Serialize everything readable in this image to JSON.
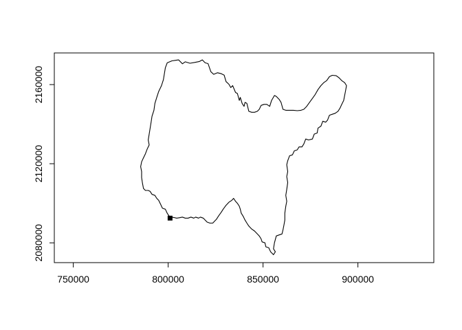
{
  "chart_data": {
    "type": "map",
    "xlim": [
      740000,
      940000
    ],
    "ylim": [
      2070000,
      2176000
    ],
    "x_ticks": [
      {
        "value": 750000,
        "label": "750000"
      },
      {
        "value": 800000,
        "label": "800000"
      },
      {
        "value": 850000,
        "label": "850000"
      },
      {
        "value": 900000,
        "label": "900000"
      }
    ],
    "y_ticks": [
      {
        "value": 2080000,
        "label": "2080000"
      },
      {
        "value": 2120000,
        "label": "2120000"
      },
      {
        "value": 2160000,
        "label": "2160000"
      }
    ],
    "point": {
      "x": 801000,
      "y": 2092500,
      "shape": "square",
      "color": "#000000"
    },
    "boundary": [
      [
        799500,
        2171000
      ],
      [
        802000,
        2172000
      ],
      [
        805500,
        2172500
      ],
      [
        807500,
        2170500
      ],
      [
        809000,
        2171500
      ],
      [
        811500,
        2170800
      ],
      [
        814000,
        2171200
      ],
      [
        816500,
        2171700
      ],
      [
        818000,
        2172500
      ],
      [
        819500,
        2171000
      ],
      [
        821000,
        2170600
      ],
      [
        822500,
        2166500
      ],
      [
        824000,
        2165200
      ],
      [
        826000,
        2166000
      ],
      [
        828000,
        2165500
      ],
      [
        829500,
        2164800
      ],
      [
        830500,
        2161500
      ],
      [
        832000,
        2160200
      ],
      [
        833000,
        2158500
      ],
      [
        834000,
        2159500
      ],
      [
        835500,
        2156000
      ],
      [
        836500,
        2155500
      ],
      [
        837500,
        2152000
      ],
      [
        838000,
        2153500
      ],
      [
        839000,
        2150500
      ],
      [
        840000,
        2149000
      ],
      [
        840500,
        2151000
      ],
      [
        841500,
        2150500
      ],
      [
        842500,
        2146500
      ],
      [
        844000,
        2146000
      ],
      [
        845500,
        2146000
      ],
      [
        847000,
        2146500
      ],
      [
        848000,
        2147500
      ],
      [
        849000,
        2149500
      ],
      [
        850500,
        2150000
      ],
      [
        852000,
        2150000
      ],
      [
        853500,
        2149000
      ],
      [
        854500,
        2152000
      ],
      [
        856000,
        2154500
      ],
      [
        857000,
        2154000
      ],
      [
        858500,
        2152500
      ],
      [
        859500,
        2151000
      ],
      [
        860500,
        2147500
      ],
      [
        862000,
        2147000
      ],
      [
        864000,
        2147000
      ],
      [
        866000,
        2147000
      ],
      [
        868000,
        2146800
      ],
      [
        870000,
        2147000
      ],
      [
        871500,
        2147500
      ],
      [
        873000,
        2149000
      ],
      [
        874500,
        2151000
      ],
      [
        876000,
        2153000
      ],
      [
        877500,
        2155000
      ],
      [
        879000,
        2157500
      ],
      [
        880500,
        2159500
      ],
      [
        882000,
        2161000
      ],
      [
        883500,
        2162000
      ],
      [
        885000,
        2164000
      ],
      [
        886500,
        2164700
      ],
      [
        888500,
        2164500
      ],
      [
        890000,
        2163500
      ],
      [
        891500,
        2162000
      ],
      [
        893000,
        2161000
      ],
      [
        894000,
        2159500
      ],
      [
        893500,
        2157000
      ],
      [
        893000,
        2154500
      ],
      [
        892500,
        2152000
      ],
      [
        891500,
        2150000
      ],
      [
        890500,
        2148000
      ],
      [
        889500,
        2146500
      ],
      [
        888000,
        2145500
      ],
      [
        886500,
        2145000
      ],
      [
        885000,
        2144500
      ],
      [
        884000,
        2142000
      ],
      [
        883000,
        2141000
      ],
      [
        881500,
        2141500
      ],
      [
        880500,
        2139000
      ],
      [
        879000,
        2138000
      ],
      [
        878500,
        2135500
      ],
      [
        877000,
        2135000
      ],
      [
        876000,
        2132500
      ],
      [
        874000,
        2132000
      ],
      [
        872500,
        2132500
      ],
      [
        871500,
        2130000
      ],
      [
        870500,
        2128500
      ],
      [
        869000,
        2128500
      ],
      [
        868000,
        2127000
      ],
      [
        866500,
        2126500
      ],
      [
        865500,
        2124500
      ],
      [
        864000,
        2124000
      ],
      [
        863000,
        2121500
      ],
      [
        862500,
        2119500
      ],
      [
        863000,
        2116000
      ],
      [
        862500,
        2113500
      ],
      [
        863000,
        2110500
      ],
      [
        862500,
        2107000
      ],
      [
        862000,
        2104000
      ],
      [
        862500,
        2101000
      ],
      [
        862000,
        2098500
      ],
      [
        861500,
        2095000
      ],
      [
        861500,
        2091500
      ],
      [
        861000,
        2089000
      ],
      [
        860500,
        2086500
      ],
      [
        860000,
        2084500
      ],
      [
        858500,
        2084000
      ],
      [
        857000,
        2083500
      ],
      [
        856000,
        2080000
      ],
      [
        855500,
        2077000
      ],
      [
        856500,
        2075500
      ],
      [
        855500,
        2074000
      ],
      [
        854000,
        2075500
      ],
      [
        853000,
        2077500
      ],
      [
        851500,
        2078000
      ],
      [
        851000,
        2080000
      ],
      [
        849500,
        2080500
      ],
      [
        849000,
        2082000
      ],
      [
        848000,
        2083500
      ],
      [
        847000,
        2084500
      ],
      [
        845500,
        2086000
      ],
      [
        844000,
        2087000
      ],
      [
        842500,
        2088500
      ],
      [
        841500,
        2090000
      ],
      [
        840500,
        2091500
      ],
      [
        839500,
        2093500
      ],
      [
        838500,
        2095000
      ],
      [
        838000,
        2097000
      ],
      [
        837500,
        2098500
      ],
      [
        836500,
        2100000
      ],
      [
        835500,
        2101000
      ],
      [
        834500,
        2102500
      ],
      [
        833500,
        2101500
      ],
      [
        832000,
        2100500
      ],
      [
        830500,
        2099000
      ],
      [
        829000,
        2097000
      ],
      [
        828000,
        2095500
      ],
      [
        826500,
        2093500
      ],
      [
        825500,
        2092000
      ],
      [
        824500,
        2091000
      ],
      [
        823500,
        2090000
      ],
      [
        822000,
        2090000
      ],
      [
        820500,
        2090500
      ],
      [
        819500,
        2091500
      ],
      [
        818500,
        2092500
      ],
      [
        817000,
        2093000
      ],
      [
        816000,
        2092500
      ],
      [
        814500,
        2093000
      ],
      [
        813500,
        2092500
      ],
      [
        812000,
        2093000
      ],
      [
        810500,
        2092500
      ],
      [
        809000,
        2092500
      ],
      [
        807500,
        2093000
      ],
      [
        806000,
        2092700
      ],
      [
        804500,
        2092500
      ],
      [
        803000,
        2092800
      ],
      [
        801500,
        2093000
      ],
      [
        800500,
        2093500
      ],
      [
        799500,
        2095000
      ],
      [
        798500,
        2097000
      ],
      [
        797000,
        2097500
      ],
      [
        796000,
        2099500
      ],
      [
        795000,
        2101500
      ],
      [
        794000,
        2102500
      ],
      [
        793000,
        2104000
      ],
      [
        791500,
        2104500
      ],
      [
        790500,
        2106000
      ],
      [
        789500,
        2106500
      ],
      [
        788000,
        2106500
      ],
      [
        787000,
        2107500
      ],
      [
        786500,
        2110000
      ],
      [
        786000,
        2113000
      ],
      [
        786000,
        2116000
      ],
      [
        785500,
        2118500
      ],
      [
        786000,
        2121000
      ],
      [
        787000,
        2123000
      ],
      [
        788000,
        2125000
      ],
      [
        789000,
        2127500
      ],
      [
        790000,
        2129500
      ],
      [
        789500,
        2132000
      ],
      [
        790000,
        2135000
      ],
      [
        790500,
        2138000
      ],
      [
        791000,
        2141000
      ],
      [
        791500,
        2144000
      ],
      [
        792500,
        2147000
      ],
      [
        793000,
        2150500
      ],
      [
        794000,
        2153500
      ],
      [
        795000,
        2156500
      ],
      [
        796500,
        2159500
      ],
      [
        797500,
        2162500
      ],
      [
        798000,
        2165500
      ],
      [
        798500,
        2168500
      ],
      [
        799500,
        2171000
      ]
    ]
  }
}
